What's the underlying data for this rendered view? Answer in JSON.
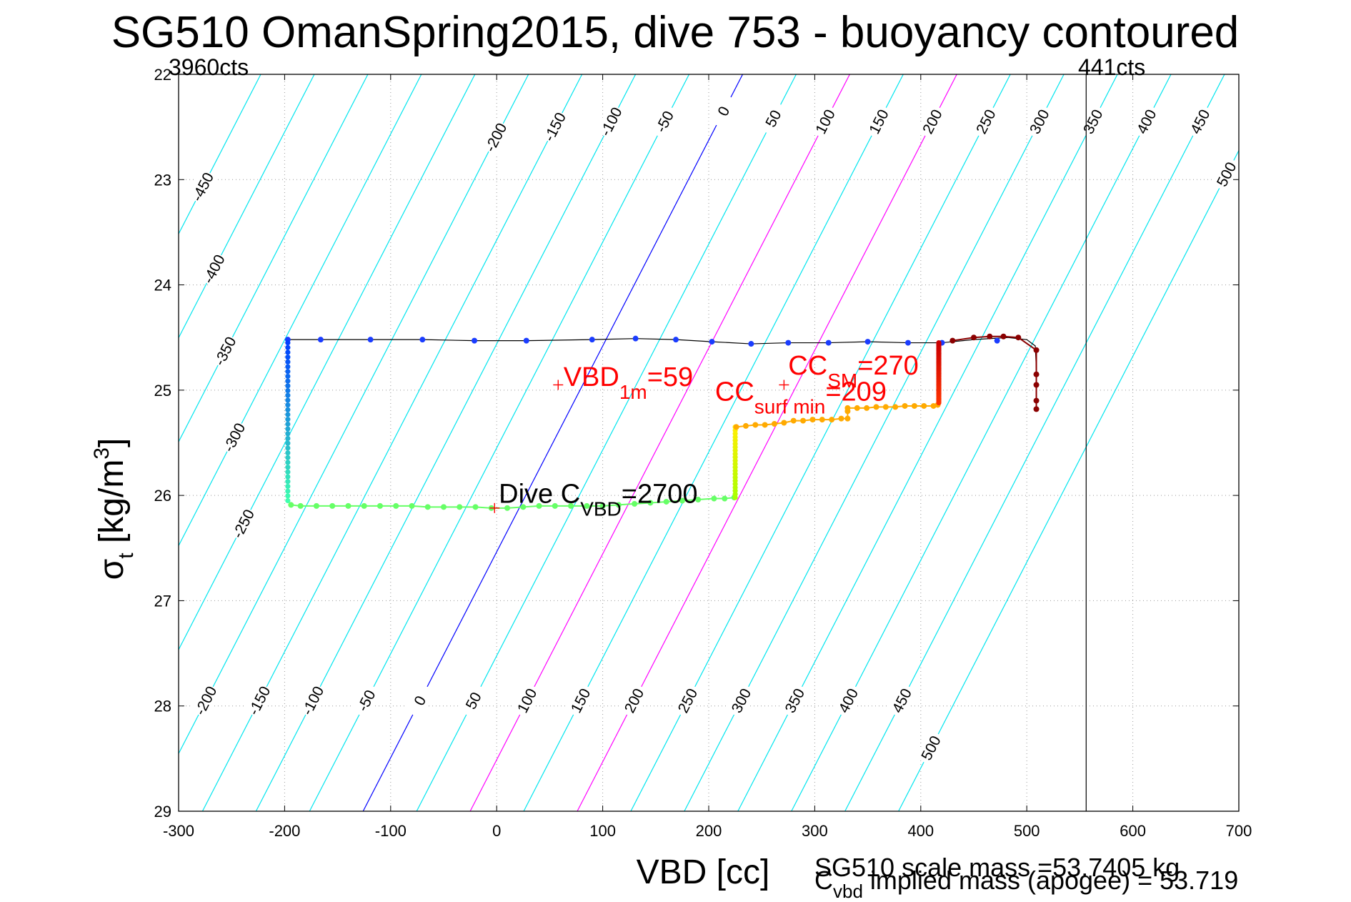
{
  "chart_data": {
    "type": "scatter",
    "title": "SG510 OmanSpring2015, dive 753 - buoyancy contoured",
    "xlabel": "VBD [cc]",
    "ylabel_main": "σ",
    "ylabel_sub": "t",
    "ylabel_rest": "[kg/m",
    "ylabel_sup": "3",
    "ylabel_close": "]",
    "xlim": [
      -300,
      700
    ],
    "ylim": [
      22,
      29
    ],
    "y_reversed": true,
    "grid": true,
    "xticks": [
      "-300",
      "-200",
      "-100",
      "0",
      "100",
      "200",
      "300",
      "400",
      "500",
      "600",
      "700"
    ],
    "yticks": [
      "22",
      "23",
      "24",
      "25",
      "26",
      "27",
      "28",
      "29"
    ],
    "corner_labels": {
      "left": "3960cts",
      "right": "441cts"
    },
    "vertical_line_x": 556,
    "contours": {
      "description_units": "buoyancy (g)",
      "levels": [
        -450,
        -400,
        -350,
        -300,
        -250,
        -200,
        -150,
        -100,
        -50,
        0,
        50,
        100,
        150,
        200,
        250,
        300,
        350,
        400,
        450,
        500
      ],
      "zero_contour": {
        "x_at_top": 232,
        "x_at_bottom": -126,
        "color": "#0000ff"
      },
      "highlight_levels": [
        100,
        200
      ],
      "highlight_color": "#ff00ff",
      "other_color": "#00e5ee",
      "spacing_cc_per_50": 50.5,
      "top_labels": [
        "-450",
        "-400",
        "-350",
        "-300",
        "-250",
        "-200",
        "-150",
        "-100",
        "-50",
        "0",
        "50",
        "100",
        "150",
        "200",
        "250",
        "300",
        "350",
        "400",
        "450",
        "500"
      ],
      "bottom_labels": [
        "-200",
        "-150",
        "-100",
        "-50",
        "0",
        "50",
        "100",
        "150",
        "200",
        "250",
        "300",
        "350",
        "400",
        "450",
        "500"
      ]
    },
    "trace": {
      "color": "#000000",
      "points": [
        [
          -197,
          24.52
        ],
        [
          -166,
          24.52
        ],
        [
          -119,
          24.52
        ],
        [
          -70,
          24.52
        ],
        [
          -21,
          24.53
        ],
        [
          28,
          24.53
        ],
        [
          90,
          24.52
        ],
        [
          131,
          24.51
        ],
        [
          169,
          24.52
        ],
        [
          203,
          24.54
        ],
        [
          240,
          24.56
        ],
        [
          275,
          24.55
        ],
        [
          313,
          24.55
        ],
        [
          350,
          24.54
        ],
        [
          388,
          24.55
        ],
        [
          420,
          24.55
        ],
        [
          450,
          24.52
        ],
        [
          482,
          24.5
        ],
        [
          500,
          24.52
        ],
        [
          508,
          24.58
        ],
        [
          509,
          24.8
        ],
        [
          509,
          25.18
        ]
      ]
    },
    "series": [
      {
        "name": "",
        "segment": "descent-top",
        "color": "#1a3cff",
        "points": [
          [
            -197,
            24.52
          ],
          [
            -166,
            24.52
          ],
          [
            -119,
            24.52
          ],
          [
            -70,
            24.52
          ],
          [
            -21,
            24.53
          ],
          [
            28,
            24.53
          ],
          [
            90,
            24.52
          ],
          [
            131,
            24.51
          ],
          [
            169,
            24.52
          ],
          [
            203,
            24.54
          ],
          [
            240,
            24.56
          ],
          [
            275,
            24.55
          ],
          [
            313,
            24.55
          ],
          [
            350,
            24.54
          ],
          [
            388,
            24.55
          ],
          [
            420,
            24.55
          ],
          [
            472,
            24.53
          ]
        ]
      },
      {
        "name": "",
        "segment": "left-vertical",
        "color_start": "#0040ff",
        "color_end": "#40ffb0",
        "y_from": 24.55,
        "y_to": 26.05,
        "x": -197,
        "count": 34
      },
      {
        "name": "",
        "segment": "bottom",
        "color": "#66ff66",
        "points": [
          [
            -194,
            26.09
          ],
          [
            -185,
            26.1
          ],
          [
            -170,
            26.1
          ],
          [
            -155,
            26.1
          ],
          [
            -140,
            26.1
          ],
          [
            -125,
            26.1
          ],
          [
            -110,
            26.1
          ],
          [
            -95,
            26.1
          ],
          [
            -80,
            26.1
          ],
          [
            -65,
            26.11
          ],
          [
            -50,
            26.11
          ],
          [
            -35,
            26.11
          ],
          [
            -20,
            26.11
          ],
          [
            -5,
            26.12
          ],
          [
            10,
            26.12
          ],
          [
            25,
            26.11
          ],
          [
            40,
            26.1
          ],
          [
            55,
            26.1
          ],
          [
            70,
            26.1
          ],
          [
            85,
            26.1
          ],
          [
            100,
            26.1
          ],
          [
            115,
            26.09
          ],
          [
            130,
            26.08
          ],
          [
            145,
            26.07
          ],
          [
            160,
            26.06
          ],
          [
            175,
            26.05
          ],
          [
            190,
            26.04
          ],
          [
            205,
            26.03
          ],
          [
            215,
            26.03
          ],
          [
            224,
            26.02
          ]
        ]
      },
      {
        "name": "",
        "segment": "yellow-vertical",
        "color_start": "#aaff00",
        "color_end": "#ffee00",
        "y_from": 26.02,
        "y_to": 25.35,
        "x": 225,
        "count": 22
      },
      {
        "name": "",
        "segment": "orange-ramp",
        "color": "#ffaa00",
        "points": [
          [
            226,
            25.35
          ],
          [
            235,
            25.34
          ],
          [
            244,
            25.33
          ],
          [
            253,
            25.33
          ],
          [
            262,
            25.32
          ],
          [
            271,
            25.31
          ],
          [
            280,
            25.29
          ],
          [
            289,
            25.29
          ],
          [
            298,
            25.28
          ],
          [
            307,
            25.28
          ],
          [
            316,
            25.28
          ],
          [
            325,
            25.27
          ],
          [
            331,
            25.27
          ],
          [
            331,
            25.2
          ],
          [
            331,
            25.17
          ],
          [
            340,
            25.17
          ],
          [
            349,
            25.17
          ],
          [
            358,
            25.16
          ],
          [
            367,
            25.16
          ],
          [
            376,
            25.16
          ],
          [
            385,
            25.15
          ],
          [
            394,
            25.15
          ],
          [
            403,
            25.15
          ],
          [
            412,
            25.15
          ],
          [
            416,
            25.14
          ]
        ]
      },
      {
        "name": "",
        "segment": "red-vertical",
        "color_start": "#ff3300",
        "color_end": "#cc0000",
        "y_from": 25.12,
        "y_to": 24.55,
        "x": 417,
        "count": 40
      },
      {
        "name": "",
        "segment": "dark-red",
        "color": "#8b0000",
        "points": [
          [
            430,
            24.53
          ],
          [
            450,
            24.5
          ],
          [
            465,
            24.49
          ],
          [
            478,
            24.49
          ],
          [
            492,
            24.5
          ],
          [
            509,
            24.62
          ],
          [
            509,
            24.85
          ],
          [
            509,
            24.95
          ],
          [
            509,
            25.1
          ],
          [
            509,
            25.18
          ]
        ]
      }
    ],
    "markers": [
      {
        "x": 58,
        "y": 24.95,
        "color": "#ff0000"
      },
      {
        "x": 271,
        "y": 24.95,
        "color": "#ff0000"
      },
      {
        "x": -2,
        "y": 26.12,
        "color": "#ff0000"
      }
    ],
    "annotations": [
      {
        "id": "vbd1m",
        "x": 63,
        "y": 24.96,
        "color": "#ff0000",
        "main": "VBD",
        "sub": "1m",
        "rest": "=59"
      },
      {
        "id": "ccsm",
        "x": 275,
        "y": 24.85,
        "color": "#ff0000",
        "main": "CC",
        "sub": "SM",
        "rest": "=270"
      },
      {
        "id": "ccsurf",
        "x": 206,
        "y": 25.1,
        "color": "#ff0000",
        "main": "CC",
        "sub": "surf min",
        "rest": "=209"
      },
      {
        "id": "divec",
        "x": 2,
        "y": 26.07,
        "color": "#000000",
        "main": "Dive C",
        "sub": "VBD",
        "rest": "=2700"
      }
    ],
    "footer": {
      "line1": "SG510 scale mass =53.7405 kg",
      "line2_main": "C",
      "line2_sub": "vbd",
      "line2_rest": " implied mass (apogee) = 53.719"
    }
  }
}
